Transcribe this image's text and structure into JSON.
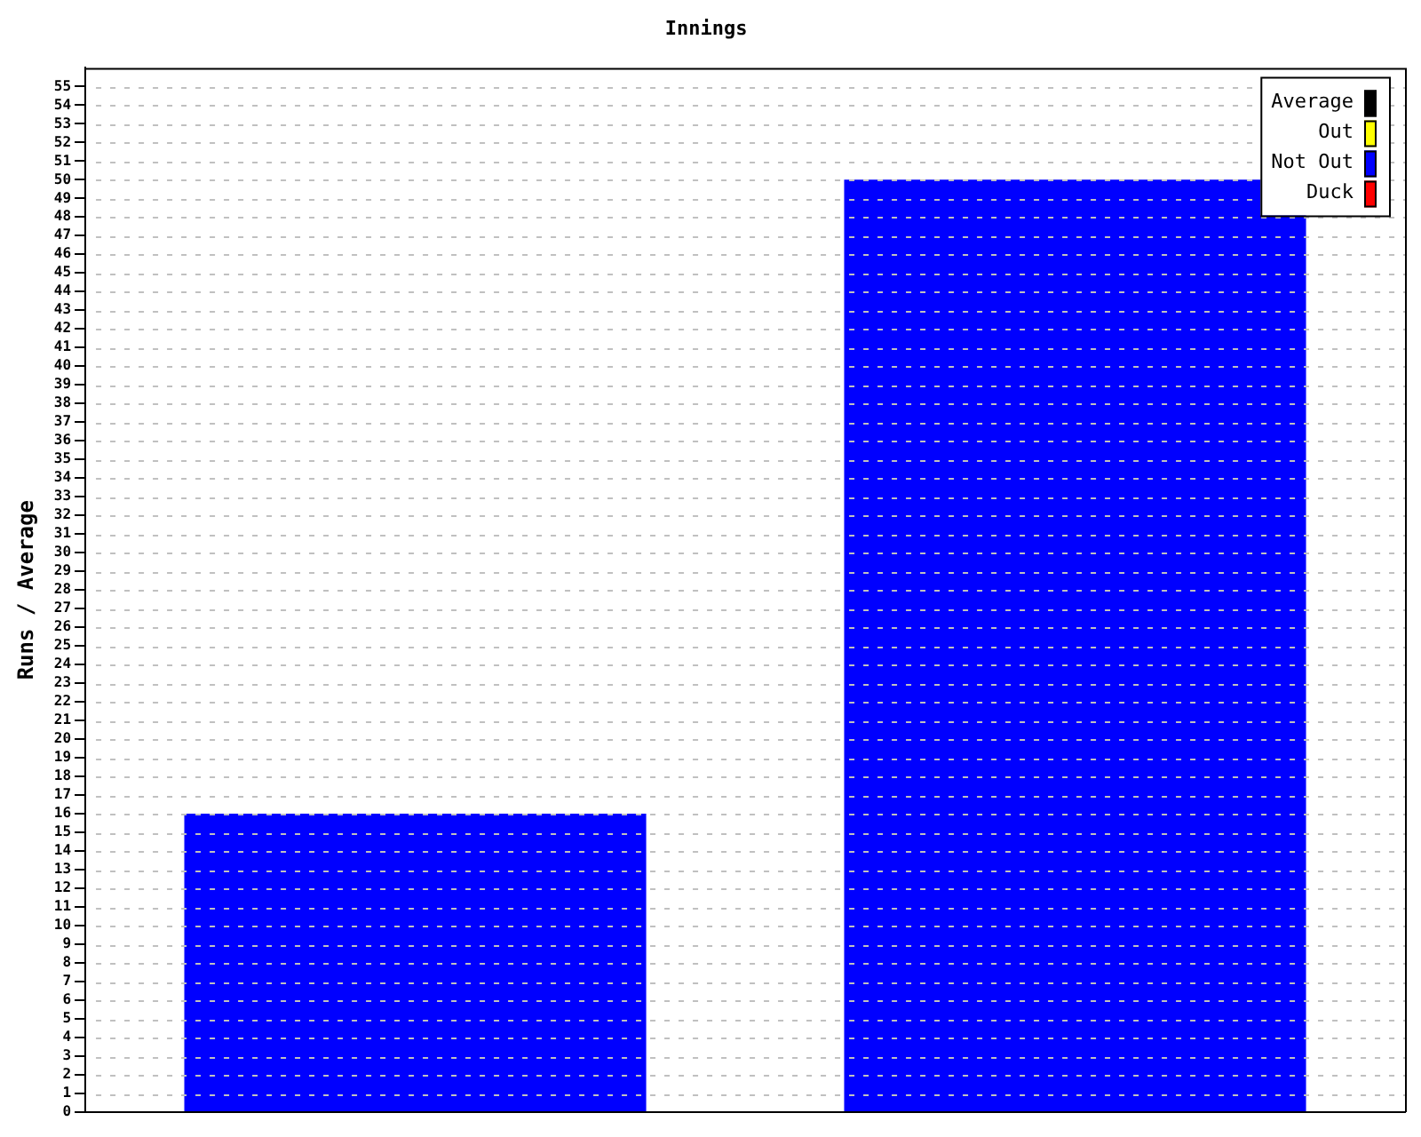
{
  "chart_data": {
    "type": "bar",
    "title": "Innings",
    "ylabel": "Runs / Average",
    "categories": [
      null,
      null
    ],
    "stacked": true,
    "series": [
      {
        "name": "Average",
        "color": "#000000",
        "values": [
          null,
          null
        ]
      },
      {
        "name": "Out",
        "color": "#ffff00",
        "values": [
          null,
          null
        ]
      },
      {
        "name": "Not Out",
        "color": "#0000ff",
        "values": [
          16,
          50
        ]
      },
      {
        "name": "Duck",
        "color": "#ff0000",
        "values": [
          null,
          null
        ]
      }
    ],
    "ylim": [
      0,
      56
    ],
    "yticks": [
      0,
      1,
      2,
      3,
      4,
      5,
      6,
      7,
      8,
      9,
      10,
      11,
      12,
      13,
      14,
      15,
      16,
      17,
      18,
      19,
      20,
      21,
      22,
      23,
      24,
      25,
      26,
      27,
      28,
      29,
      30,
      31,
      32,
      33,
      34,
      35,
      36,
      37,
      38,
      39,
      40,
      41,
      42,
      43,
      44,
      45,
      46,
      47,
      48,
      49,
      50,
      51,
      52,
      53,
      54,
      55
    ],
    "grid": true,
    "legend": "top right"
  }
}
